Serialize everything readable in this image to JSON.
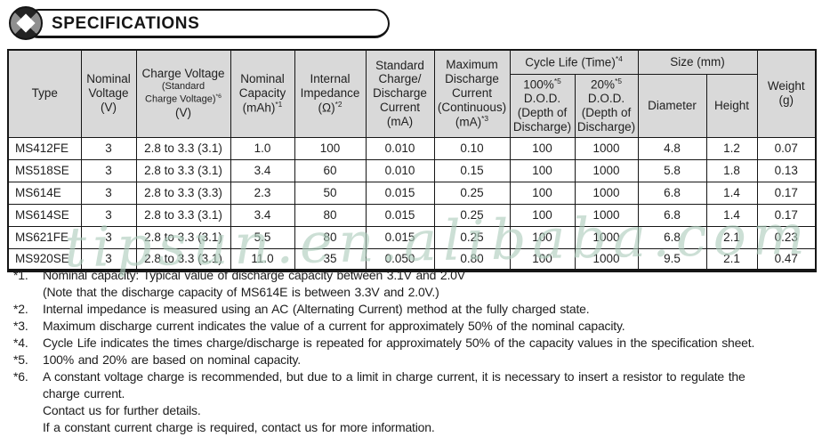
{
  "banner": {
    "title": "SPECIFICATIONS"
  },
  "watermark": {
    "text": "tipsun.en.alibaba.com"
  },
  "colors": {
    "header_bg": "#d9d9d9",
    "border": "#161616",
    "text": "#1f1f1f",
    "watermark": "#aecdbc"
  },
  "table": {
    "header": {
      "type": "Type",
      "nominal_voltage": "Nominal\nVoltage\n(V)",
      "charge_voltage": {
        "main": "Charge Voltage",
        "sub": "(Standard\nCharge Voltage)",
        "sup": "*6",
        "unit": "(V)"
      },
      "nominal_capacity": {
        "text": "Nominal\nCapacity\n(mAh)",
        "sup": "*1"
      },
      "internal_impedance": {
        "text": "Internal\nImpedance\n(Ω)",
        "sup": "*2"
      },
      "std_current": "Standard\nCharge/\nDischarge\nCurrent\n(mA)",
      "max_current": {
        "text": "Maximum\nDischarge\nCurrent\n(Continuous)\n(mA)",
        "sup": "*3"
      },
      "cycle_life_group": {
        "text": "Cycle Life (Time)",
        "sup": "*4"
      },
      "dod_100": {
        "pct": "100%",
        "sup": "*5",
        "rest": "D.O.D.\n(Depth of\nDischarge)"
      },
      "dod_20": {
        "pct": "20%",
        "sup": "*5",
        "rest": "D.O.D.\n(Depth of\nDischarge)"
      },
      "size_group": "Size (mm)",
      "diameter": "Diameter",
      "height": "Height",
      "weight": "Weight\n(g)"
    },
    "rows": [
      {
        "cells": [
          "MS412FE",
          "3",
          "2.8 to 3.3 (3.1)",
          "1.0",
          "100",
          "0.010",
          "0.10",
          "100",
          "1000",
          "4.8",
          "1.2",
          "0.07"
        ]
      },
      {
        "cells": [
          "MS518SE",
          "3",
          "2.8 to 3.3 (3.1)",
          "3.4",
          "60",
          "0.010",
          "0.15",
          "100",
          "1000",
          "5.8",
          "1.8",
          "0.13"
        ]
      },
      {
        "cells": [
          "MS614E",
          "3",
          "2.8 to 3.3 (3.3)",
          "2.3",
          "50",
          "0.015",
          "0.25",
          "100",
          "1000",
          "6.8",
          "1.4",
          "0.17"
        ]
      },
      {
        "cells": [
          "MS614SE",
          "3",
          "2.8 to 3.3 (3.1)",
          "3.4",
          "80",
          "0.015",
          "0.25",
          "100",
          "1000",
          "6.8",
          "1.4",
          "0.17"
        ]
      },
      {
        "cells": [
          "MS621FE",
          "3",
          "2.8 to 3.3 (3.1)",
          "5.5",
          "80",
          "0.015",
          "0.25",
          "100",
          "1000",
          "6.8",
          "2.1",
          "0.23"
        ]
      },
      {
        "cells": [
          "MS920SE",
          "3",
          "2.8 to 3.3 (3.1)",
          "11.0",
          "35",
          "0.050",
          "0.80",
          "100",
          "1000",
          "9.5",
          "2.1",
          "0.47"
        ]
      }
    ]
  },
  "footnotes": [
    {
      "marker": "*1.",
      "text": "Nominal capacity: Typical value of discharge capacity between 3.1V and 2.0V\n(Note that the discharge capacity of MS614E is between 3.3V and 2.0V.)"
    },
    {
      "marker": "*2.",
      "text": "Internal impedance is measured using an AC (Alternating Current) method at the fully charged state."
    },
    {
      "marker": "*3.",
      "text": "Maximum discharge current indicates the value of a current for approximately 50% of the nominal capacity."
    },
    {
      "marker": "*4.",
      "text": "Cycle Life indicates the times charge/discharge is repeated for approximately 50% of the capacity values in the specification sheet."
    },
    {
      "marker": "*5.",
      "text": "100% and 20% are based on nominal capacity."
    },
    {
      "marker": "*6.",
      "text": "A constant voltage charge is recommended, but due to a limit in charge current, it is necessary to insert a resistor to regulate the\ncharge current.\nContact us for further details.\nIf a constant current charge is required, contact us for more information."
    }
  ]
}
